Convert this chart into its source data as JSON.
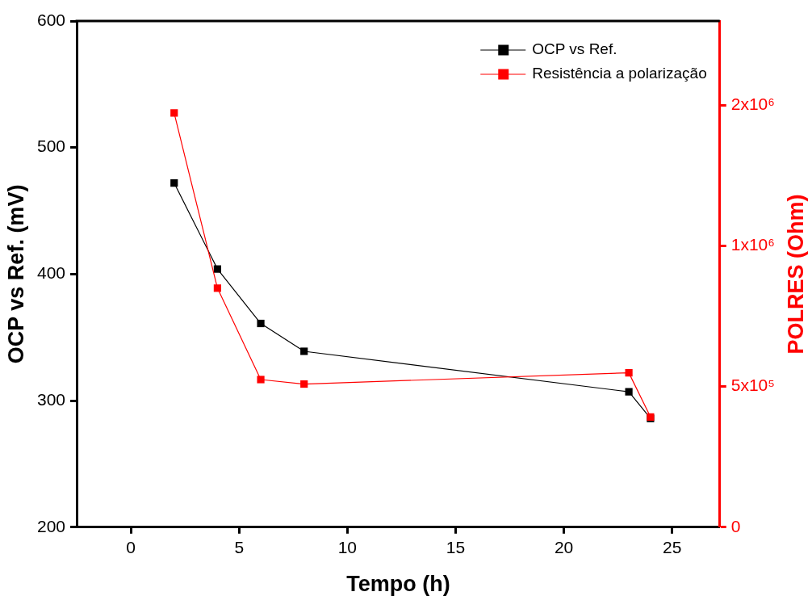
{
  "chart_data": {
    "type": "line",
    "xlabel": "Tempo (h)",
    "ylabel": "OCP vs Ref. (mV)",
    "y2label": "POLRES (Ohm)",
    "x": [
      2,
      4,
      6,
      8,
      23,
      24
    ],
    "series": [
      {
        "name": "OCP vs Ref.",
        "color": "#000000",
        "values": [
          472,
          404,
          361,
          339,
          307,
          286
        ]
      },
      {
        "name": "Resistência a polarização",
        "color": "#ff0000",
        "axis": "y2",
        "values": [
          1473000,
          850000,
          525000,
          509000,
          549000,
          392000
        ]
      }
    ],
    "xlim": [
      -2.5,
      27.2
    ],
    "xticks": [
      0,
      5,
      10,
      15,
      20,
      25
    ],
    "ylim": [
      200,
      600
    ],
    "yticks": [
      200,
      300,
      400,
      500,
      600
    ],
    "y2lim": [
      0,
      1800000
    ],
    "y2ticks": [
      0,
      {
        "value": 500000,
        "label": "5x10⁵"
      },
      {
        "value": 1000000,
        "label": "1x10⁶"
      },
      {
        "value": 1500000,
        "label": "2x10⁶"
      }
    ],
    "legend": "top right",
    "marker": "square",
    "line_style": "solid"
  }
}
